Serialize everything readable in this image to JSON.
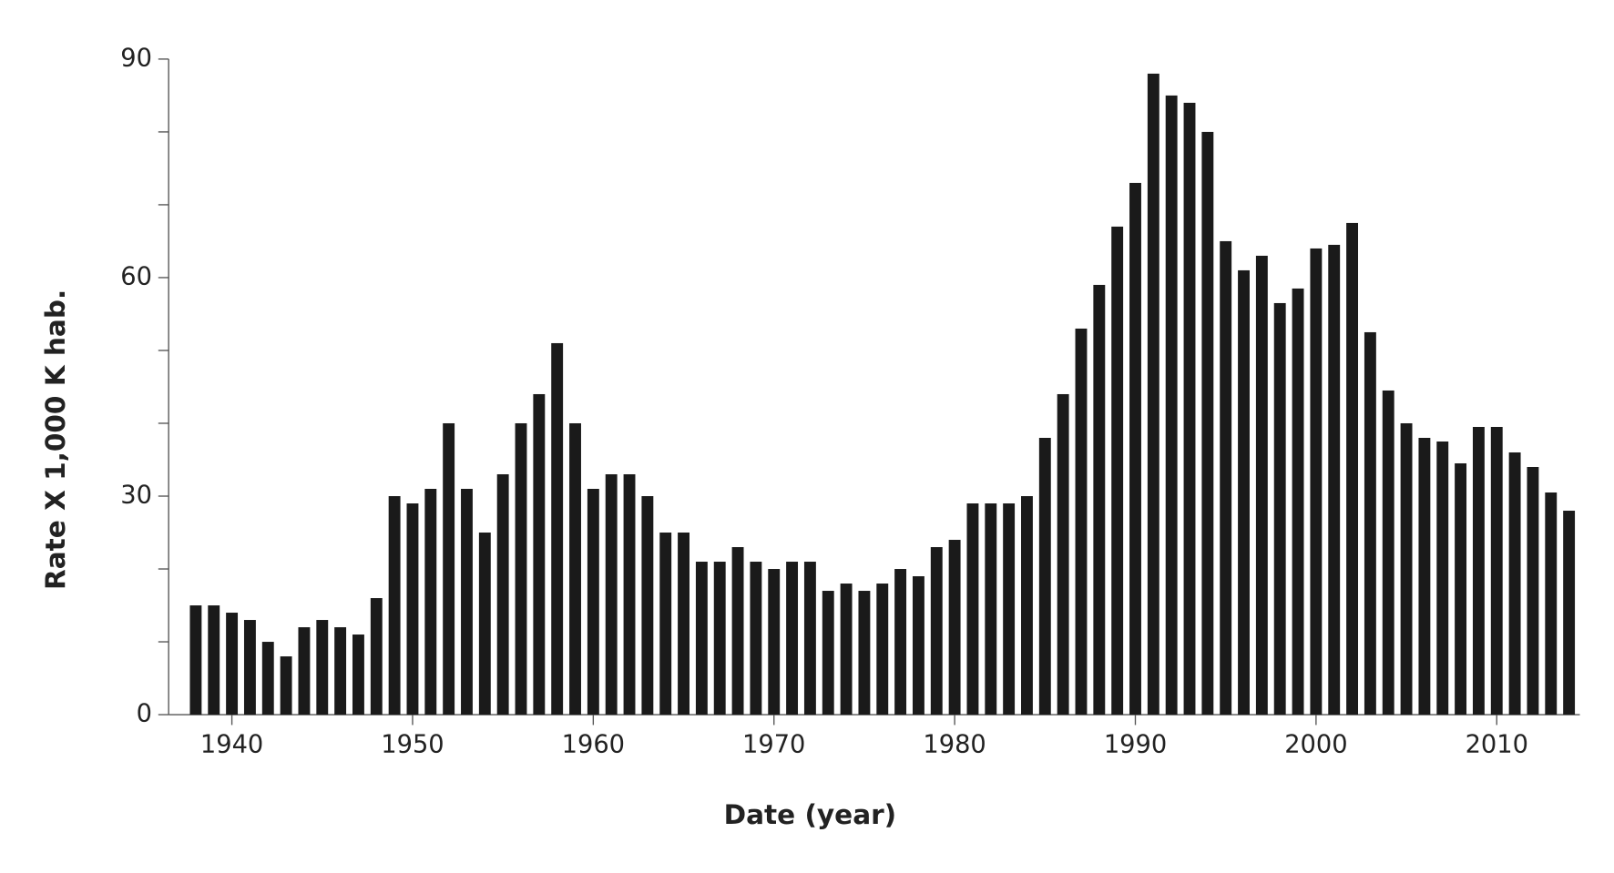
{
  "chart_data": {
    "type": "bar",
    "x_label": "Date (year)",
    "y_label": "Rate X 1,000 K hab.",
    "x": [
      1938,
      1939,
      1940,
      1941,
      1942,
      1943,
      1944,
      1945,
      1946,
      1947,
      1948,
      1949,
      1950,
      1951,
      1952,
      1953,
      1954,
      1955,
      1956,
      1957,
      1958,
      1959,
      1960,
      1961,
      1962,
      1963,
      1964,
      1965,
      1966,
      1967,
      1968,
      1969,
      1970,
      1971,
      1972,
      1973,
      1974,
      1975,
      1976,
      1977,
      1978,
      1979,
      1980,
      1981,
      1982,
      1983,
      1984,
      1985,
      1986,
      1987,
      1988,
      1989,
      1990,
      1991,
      1992,
      1993,
      1994,
      1995,
      1996,
      1997,
      1998,
      1999,
      2000,
      2001,
      2002,
      2003,
      2004,
      2005,
      2006,
      2007,
      2008,
      2009,
      2010,
      2011,
      2012,
      2013,
      2014
    ],
    "values": [
      15,
      15,
      14,
      13,
      10,
      8,
      12,
      13,
      12,
      11,
      16,
      30,
      29,
      31,
      40,
      31,
      25,
      33,
      40,
      44,
      51,
      40,
      31,
      33,
      33,
      30,
      25,
      25,
      21,
      21,
      23,
      21,
      20,
      21,
      21,
      17,
      18,
      17,
      18,
      20,
      19,
      23,
      24,
      29,
      29,
      29,
      30,
      38,
      44,
      53,
      59,
      67,
      73,
      88,
      85,
      84,
      80,
      65,
      61,
      63,
      56.5,
      58.5,
      64,
      64.5,
      67.5,
      52.5,
      44.5,
      40,
      38,
      37.5,
      34.5,
      39.5,
      39.5,
      36,
      34,
      30.5,
      28
    ],
    "color": "#1a1a1a",
    "xlim": [
      1936.5,
      2014.6
    ],
    "xticks": [
      1940,
      1950,
      1960,
      1970,
      1980,
      1990,
      2000,
      2010
    ],
    "ylim": [
      0,
      90
    ],
    "yticks": [
      0,
      30,
      60,
      90
    ],
    "yticks_minor": [
      10,
      20,
      40,
      50,
      70,
      80
    ]
  }
}
